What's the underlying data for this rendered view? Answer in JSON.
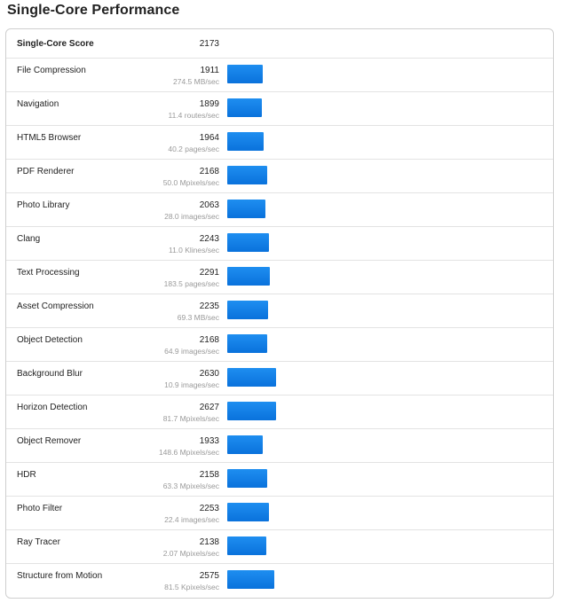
{
  "title": "Single-Core Performance",
  "summary": {
    "label": "Single-Core Score",
    "score": "2173"
  },
  "chart_data": {
    "type": "bar",
    "title": "Single-Core Performance",
    "categories": [
      "File Compression",
      "Navigation",
      "HTML5 Browser",
      "PDF Renderer",
      "Photo Library",
      "Clang",
      "Text Processing",
      "Asset Compression",
      "Object Detection",
      "Background Blur",
      "Horizon Detection",
      "Object Remover",
      "HDR",
      "Photo Filter",
      "Ray Tracer",
      "Structure from Motion"
    ],
    "values": [
      1911,
      1899,
      1964,
      2168,
      2063,
      2243,
      2291,
      2235,
      2168,
      2630,
      2627,
      1933,
      2158,
      2253,
      2138,
      2575
    ],
    "rates": [
      "274.5 MB/sec",
      "11.4 routes/sec",
      "40.2 pages/sec",
      "50.0 Mpixels/sec",
      "28.0 images/sec",
      "11.0 Klines/sec",
      "183.5 pages/sec",
      "69.3 MB/sec",
      "64.9 images/sec",
      "10.9 images/sec",
      "81.7 Mpixels/sec",
      "148.6 Mpixels/sec",
      "63.3 Mpixels/sec",
      "22.4 images/sec",
      "2.07 Mpixels/sec",
      "81.5 Kpixels/sec"
    ],
    "bar_color": "#0a7be3",
    "xlim": [
      0,
      2650
    ],
    "grid": false,
    "legend": "none"
  }
}
